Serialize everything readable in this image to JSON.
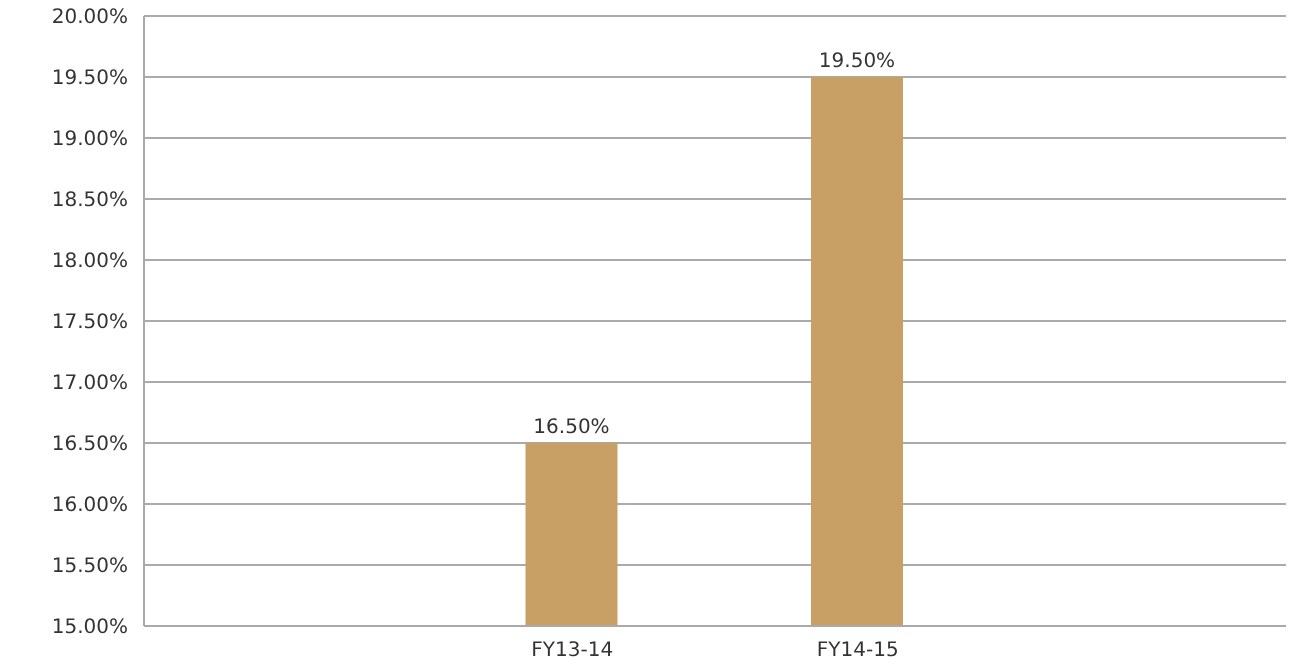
{
  "chart_data": {
    "type": "bar",
    "categories": [
      null,
      "FY13-14",
      "FY14-15",
      null
    ],
    "values": [
      null,
      16.5,
      19.5,
      null
    ],
    "color": "#c89f65",
    "value_labels": [
      null,
      "16.50%",
      "19.50%",
      null
    ],
    "ylim": [
      15,
      20
    ],
    "yticks": [
      {
        "value": 15,
        "label": "15.00%"
      },
      {
        "value": 15.5,
        "label": "15.50%"
      },
      {
        "value": 16,
        "label": "16.00%"
      },
      {
        "value": 16.5,
        "label": "16.50%"
      },
      {
        "value": 17,
        "label": "17.00%"
      },
      {
        "value": 17.5,
        "label": "17.50%"
      },
      {
        "value": 18,
        "label": "18.00%"
      },
      {
        "value": 18.5,
        "label": "18.50%"
      },
      {
        "value": 19,
        "label": "19.00%"
      },
      {
        "value": 19.5,
        "label": "19.50%"
      },
      {
        "value": 20,
        "label": "20.00%"
      }
    ],
    "grid": "y"
  }
}
